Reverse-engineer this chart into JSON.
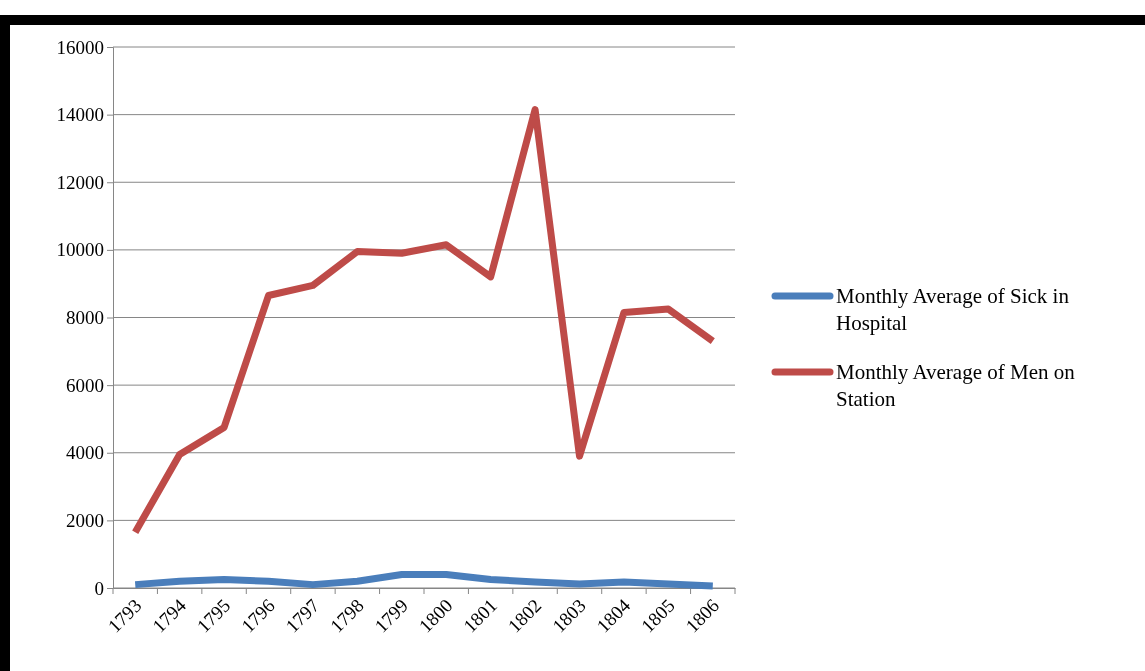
{
  "chart_data": {
    "type": "line",
    "categories": [
      "1793",
      "1794",
      "1795",
      "1796",
      "1797",
      "1798",
      "1799",
      "1800",
      "1801",
      "1802",
      "1803",
      "1804",
      "1805",
      "1806"
    ],
    "series": [
      {
        "name": "Monthly Average of Sick in Hospital",
        "color": "#4a7ebb",
        "values": [
          100,
          200,
          250,
          200,
          100,
          200,
          400,
          400,
          250,
          180,
          120,
          180,
          120,
          60
        ]
      },
      {
        "name": "Monthly Average of Men on Station",
        "color": "#be4b48",
        "values": [
          1650,
          3950,
          4750,
          8650,
          8950,
          9950,
          9900,
          10150,
          9200,
          14150,
          3900,
          8150,
          8250,
          7300
        ]
      }
    ],
    "ylim": [
      0,
      16000
    ],
    "yticks": [
      0,
      2000,
      4000,
      6000,
      8000,
      10000,
      12000,
      14000,
      16000
    ],
    "grid": "y",
    "legend": "right",
    "marker": "none",
    "line_style": "solid"
  }
}
